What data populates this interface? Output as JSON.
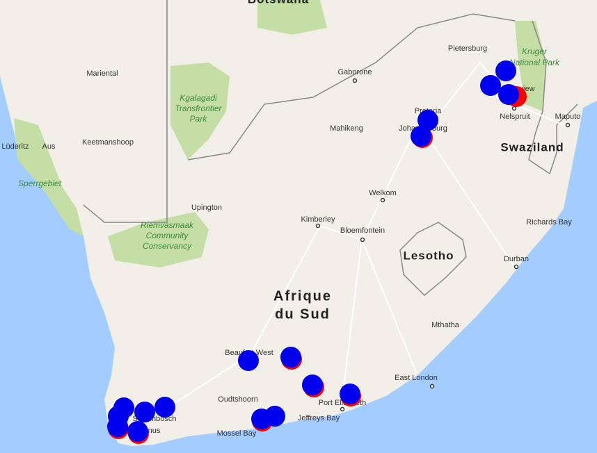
{
  "countries": {
    "botswana": "Botswana",
    "swaziland": "Swaziland",
    "lesotho": "Lesotho",
    "south_africa_1": "Afrique",
    "south_africa_2": "du Sud"
  },
  "cities": {
    "pietersburg": "Pietersburg",
    "mariental": "Mariental",
    "gaborone": "Gaborone",
    "pretoria": "Pretoria",
    "johannesburg": "Johannesburg",
    "mahikeng": "Mahikeng",
    "nelspruit": "Nelspruit",
    "hazyview": "Hazyview",
    "maputo": "Maputo",
    "luderitz": "Lüderitz",
    "aus": "Aus",
    "keetmanshoop": "Keetmanshoop",
    "welkom": "Welkom",
    "upington": "Upington",
    "richards_bay": "Richards Bay",
    "kimberley": "Kimberley",
    "bloemfontein": "Bloemfontein",
    "durban": "Durban",
    "mthatha": "Mthatha",
    "beaufort_west": "Beaufort West",
    "east_london": "East London",
    "oudtshoorn": "Oudtshoorn",
    "port_elizabeth": "Port Elizabeth",
    "jeffreys_bay": "Jeffreys Bay",
    "mossel_bay": "Mossel Bay",
    "stellenbosch": "Stellenbosch",
    "hermanus": "Hermanus"
  },
  "parks": {
    "kruger_1": "Kruger",
    "kruger_2": "National Park",
    "kgalagadi_1": "Kgalagadi",
    "kgalagadi_2": "Transfrontier",
    "kgalagadi_3": "Park",
    "sperrgebiet": "Sperrgebiet",
    "riemvasmaak_1": "Riemvasmaak",
    "riemvasmaak_2": "Community",
    "riemvasmaak_3": "Conservancy"
  }
}
